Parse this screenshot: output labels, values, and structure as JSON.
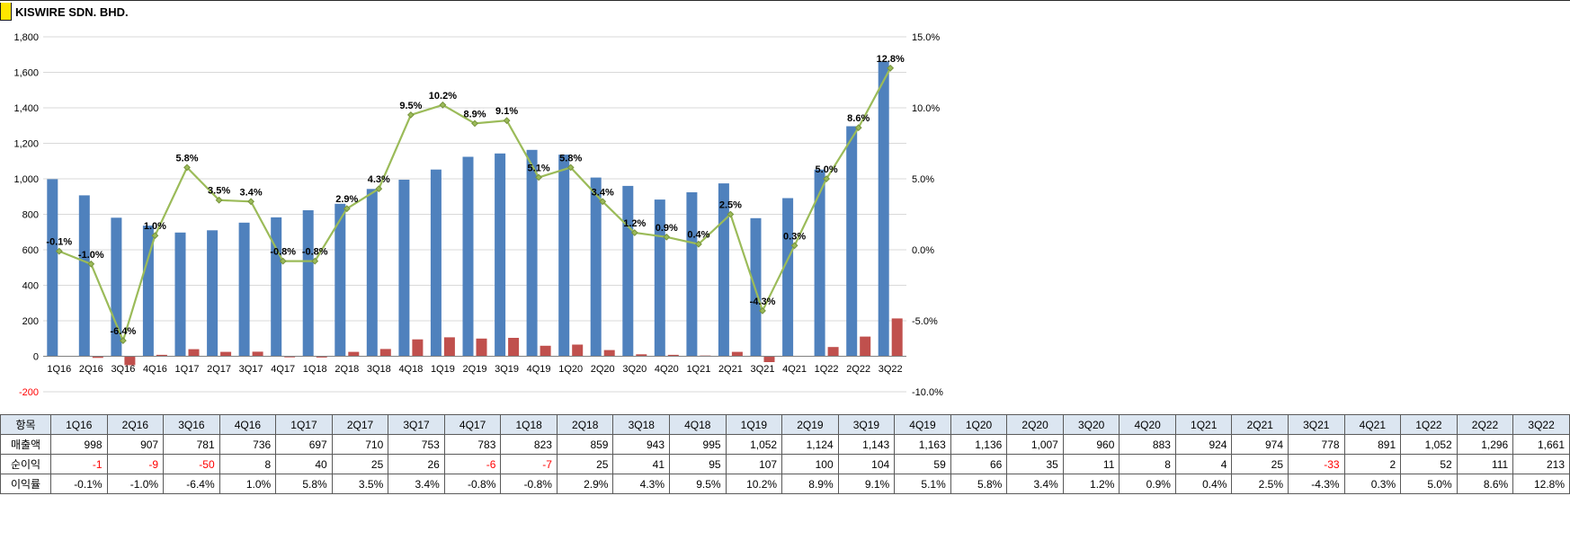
{
  "title": "KISWIRE SDN. BHD.",
  "colors": {
    "revenue_bar": "#4F81BD",
    "net_income_bar": "#C0504D",
    "margin_line": "#9BBB59",
    "marker_stroke": "#77933C",
    "negative_text": "#FF0000",
    "table_header_bg": "#DCE6F1",
    "highlight_marker": "#FFE600",
    "gridline": "#D9D9D9",
    "axis_line": "#808080"
  },
  "chart_data": {
    "type": "combo",
    "title": "",
    "legend": "none",
    "grid": true,
    "categories": [
      "1Q16",
      "2Q16",
      "3Q16",
      "4Q16",
      "1Q17",
      "2Q17",
      "3Q17",
      "4Q17",
      "1Q18",
      "2Q18",
      "3Q18",
      "4Q18",
      "1Q19",
      "2Q19",
      "3Q19",
      "4Q19",
      "1Q20",
      "2Q20",
      "3Q20",
      "4Q20",
      "1Q21",
      "2Q21",
      "3Q21",
      "4Q21",
      "1Q22",
      "2Q22",
      "3Q22"
    ],
    "series": [
      {
        "name": "매출액",
        "type": "bar",
        "axis": "left",
        "color": "#4F81BD",
        "values": [
          998,
          907,
          781,
          736,
          697,
          710,
          753,
          783,
          823,
          859,
          943,
          995,
          1052,
          1124,
          1143,
          1163,
          1136,
          1007,
          960,
          883,
          924,
          974,
          778,
          891,
          1052,
          1296,
          1661
        ]
      },
      {
        "name": "순이익",
        "type": "bar",
        "axis": "left",
        "color": "#C0504D",
        "values": [
          -1,
          -9,
          -50,
          8,
          40,
          25,
          26,
          -6,
          -7,
          25,
          41,
          95,
          107,
          100,
          104,
          59,
          66,
          35,
          11,
          8,
          4,
          25,
          -33,
          2,
          52,
          111,
          213
        ]
      },
      {
        "name": "이익률",
        "type": "line",
        "axis": "right",
        "color": "#9BBB59",
        "values": [
          -0.1,
          -1.0,
          -6.4,
          1.0,
          5.8,
          3.5,
          3.4,
          -0.8,
          -0.8,
          2.9,
          4.3,
          9.5,
          10.2,
          8.9,
          9.1,
          5.1,
          5.8,
          3.4,
          1.2,
          0.9,
          0.4,
          2.5,
          -4.3,
          0.3,
          5.0,
          8.6,
          12.8
        ],
        "point_labels": [
          "-0.1%",
          "-1.0%",
          "-6.4%",
          "1.0%",
          "5.8%",
          "3.5%",
          "3.4%",
          "-0.8%",
          "-0.8%",
          "2.9%",
          "4.3%",
          "9.5%",
          "10.2%",
          "8.9%",
          "9.1%",
          "5.1%",
          "5.8%",
          "3.4%",
          "1.2%",
          "0.9%",
          "0.4%",
          "2.5%",
          "-4.3%",
          "0.3%",
          "5.0%",
          "8.6%",
          "12.8%"
        ]
      }
    ],
    "left_axis": {
      "min": -200,
      "max": 1800,
      "step": 200,
      "tick_labels": [
        "1,800",
        "1,600",
        "1,400",
        "1,200",
        "1,000",
        "800",
        "600",
        "400",
        "200",
        "0",
        "-200"
      ],
      "negative_tick_color": "#FF0000"
    },
    "right_axis": {
      "min": -10,
      "max": 15,
      "step": 5,
      "tick_labels": [
        "15.0%",
        "10.0%",
        "5.0%",
        "0.0%",
        "-5.0%",
        "-10.0%"
      ]
    }
  },
  "table": {
    "header": [
      "항목",
      "1Q16",
      "2Q16",
      "3Q16",
      "4Q16",
      "1Q17",
      "2Q17",
      "3Q17",
      "4Q17",
      "1Q18",
      "2Q18",
      "3Q18",
      "4Q18",
      "1Q19",
      "2Q19",
      "3Q19",
      "4Q19",
      "1Q20",
      "2Q20",
      "3Q20",
      "4Q20",
      "1Q21",
      "2Q21",
      "3Q21",
      "4Q21",
      "1Q22",
      "2Q22",
      "3Q22"
    ],
    "rows": [
      {
        "label": "매출액",
        "red_negatives": false,
        "values": [
          "998",
          "907",
          "781",
          "736",
          "697",
          "710",
          "753",
          "783",
          "823",
          "859",
          "943",
          "995",
          "1,052",
          "1,124",
          "1,143",
          "1,163",
          "1,136",
          "1,007",
          "960",
          "883",
          "924",
          "974",
          "778",
          "891",
          "1,052",
          "1,296",
          "1,661"
        ]
      },
      {
        "label": "순이익",
        "red_negatives": true,
        "values": [
          "-1",
          "-9",
          "-50",
          "8",
          "40",
          "25",
          "26",
          "-6",
          "-7",
          "25",
          "41",
          "95",
          "107",
          "100",
          "104",
          "59",
          "66",
          "35",
          "11",
          "8",
          "4",
          "25",
          "-33",
          "2",
          "52",
          "111",
          "213"
        ]
      },
      {
        "label": "이익률",
        "red_negatives": false,
        "values": [
          "-0.1%",
          "-1.0%",
          "-6.4%",
          "1.0%",
          "5.8%",
          "3.5%",
          "3.4%",
          "-0.8%",
          "-0.8%",
          "2.9%",
          "4.3%",
          "9.5%",
          "10.2%",
          "8.9%",
          "9.1%",
          "5.1%",
          "5.8%",
          "3.4%",
          "1.2%",
          "0.9%",
          "0.4%",
          "2.5%",
          "-4.3%",
          "0.3%",
          "5.0%",
          "8.6%",
          "12.8%"
        ]
      }
    ]
  }
}
